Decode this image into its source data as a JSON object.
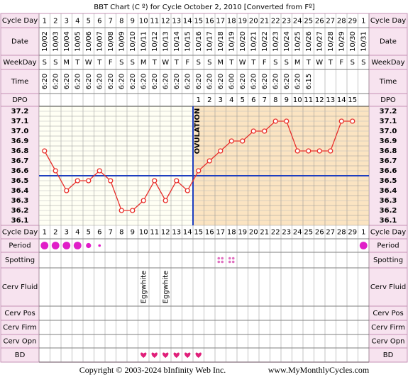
{
  "chart_data": {
    "type": "line",
    "title": "BBT Chart (C º) for Cycle October 2, 2010  [Converted from Fº]",
    "top_row_labels": [
      "Cycle Day",
      "Date",
      "WeekDay",
      "Time",
      "DPO"
    ],
    "bottom_row_labels": [
      "Cycle Day",
      "Period",
      "Spotting",
      "Cerv Fluid",
      "Cerv Pos",
      "Cerv Firm",
      "Cerv Opn",
      "BD"
    ],
    "cycle_days": [
      1,
      2,
      3,
      4,
      5,
      6,
      7,
      8,
      9,
      10,
      11,
      12,
      13,
      14,
      15,
      16,
      17,
      18,
      19,
      20,
      21,
      22,
      23,
      24,
      25,
      26,
      27,
      28,
      29,
      1
    ],
    "categories": [
      "10/02",
      "10/03",
      "10/04",
      "10/05",
      "10/06",
      "10/07",
      "10/08",
      "10/09",
      "10/10",
      "10/11",
      "10/12",
      "10/13",
      "10/14",
      "10/15",
      "10/16",
      "10/17",
      "10/18",
      "10/19",
      "10/20",
      "10/21",
      "10/22",
      "10/23",
      "10/24",
      "10/25",
      "10/26",
      "10/27",
      "10/28",
      "10/29",
      "10/30",
      "10/31"
    ],
    "weekdays": [
      "S",
      "S",
      "M",
      "T",
      "W",
      "T",
      "F",
      "S",
      "S",
      "M",
      "T",
      "W",
      "T",
      "F",
      "S",
      "S",
      "M",
      "T",
      "W",
      "T",
      "F",
      "S",
      "S",
      "M",
      "T",
      "W",
      "T",
      "F",
      "S",
      "S"
    ],
    "times": [
      "6:20",
      "6:20",
      "6:20",
      "6:20",
      "6:20",
      "6:20",
      "6:20",
      "6:20",
      "6:20",
      "6:20",
      "6:20",
      "6:20",
      "6:20",
      "6:20",
      "6:20",
      "6:20",
      "6:20",
      "6:00",
      "6:20",
      "6:20",
      "6:20",
      "6:20",
      "6:20",
      "6:20",
      "6:15",
      null,
      null,
      null,
      null,
      null
    ],
    "dpo": [
      null,
      null,
      null,
      null,
      null,
      null,
      null,
      null,
      null,
      null,
      null,
      null,
      null,
      null,
      1,
      2,
      3,
      4,
      5,
      6,
      7,
      8,
      9,
      10,
      11,
      12,
      13,
      14,
      15,
      null
    ],
    "values": [
      36.8,
      36.6,
      36.4,
      36.5,
      36.5,
      36.6,
      36.5,
      36.2,
      36.2,
      36.3,
      36.5,
      36.3,
      36.5,
      36.4,
      36.6,
      36.7,
      36.8,
      36.9,
      36.9,
      37.0,
      37.0,
      37.1,
      37.1,
      36.8,
      36.8,
      36.8,
      36.8,
      37.1,
      37.1,
      null
    ],
    "color": "#e8302c",
    "ylim": [
      36.05,
      37.25
    ],
    "yticks": [
      37.2,
      37.1,
      {
        "value": 37.0,
        "label": "37.0"
      },
      36.9,
      36.8,
      36.7,
      36.6,
      36.5,
      36.4,
      36.3,
      36.2,
      36.1
    ],
    "coverline": 36.55,
    "coverline_color": "#1f3fbf",
    "ovulation_day": 14,
    "ovulation_label": "OVULATION",
    "period": [
      3,
      3,
      3,
      3,
      2,
      1,
      0,
      0,
      0,
      0,
      0,
      0,
      0,
      0,
      0,
      0,
      0,
      0,
      0,
      0,
      0,
      0,
      0,
      0,
      0,
      0,
      0,
      0,
      0,
      3
    ],
    "period_color": "#e01fc8",
    "spotting": [
      0,
      0,
      0,
      0,
      0,
      0,
      0,
      0,
      0,
      0,
      0,
      0,
      0,
      0,
      0,
      0,
      1,
      1,
      0,
      0,
      0,
      0,
      0,
      0,
      0,
      0,
      0,
      0,
      0,
      0
    ],
    "spotting_color": "#e070c0",
    "cerv_fluid": [
      null,
      null,
      null,
      null,
      null,
      null,
      null,
      null,
      null,
      "Eggwhite",
      null,
      "Eggwhite",
      null,
      null,
      null,
      null,
      null,
      null,
      null,
      null,
      null,
      null,
      null,
      null,
      null,
      null,
      null,
      null,
      null,
      null
    ],
    "bd": [
      0,
      0,
      0,
      0,
      0,
      0,
      0,
      0,
      0,
      1,
      1,
      1,
      1,
      1,
      1,
      0,
      0,
      0,
      0,
      0,
      0,
      0,
      0,
      0,
      0,
      0,
      0,
      0,
      0,
      0
    ],
    "bd_color": "#e0207a",
    "footer": [
      "Copyright © 2003-2024 bInfinity Web Inc.",
      "www.MyMonthlyCycles.com"
    ]
  }
}
